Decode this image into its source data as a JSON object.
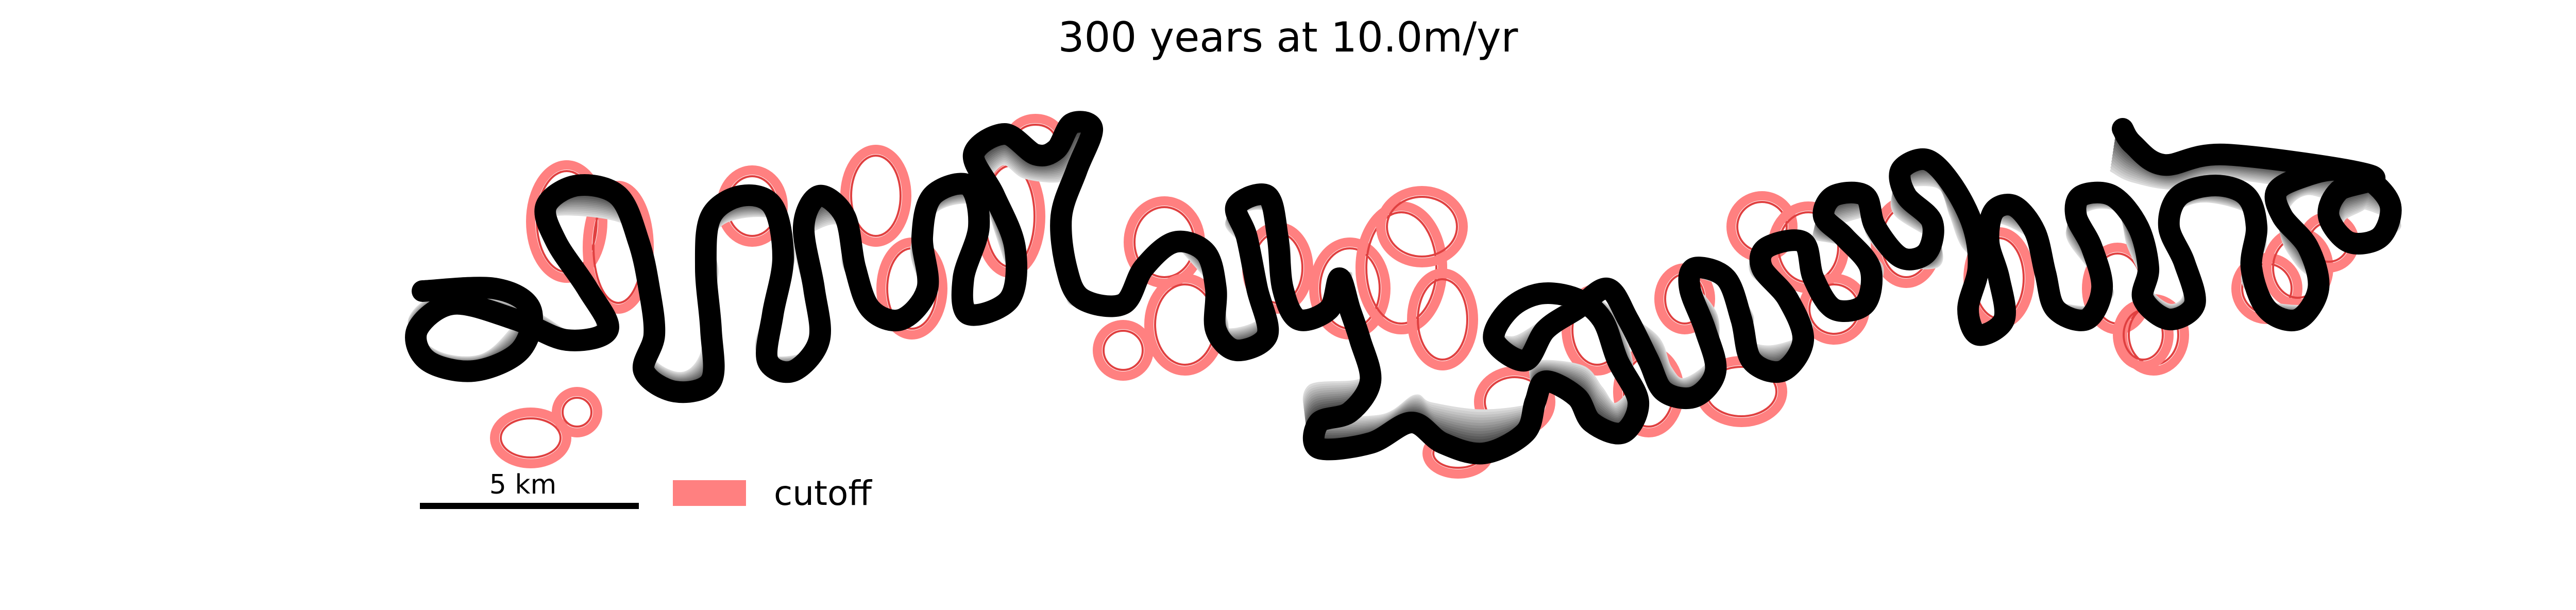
{
  "title": "300 years at 10.0m/yr",
  "scale_bar": {
    "label": "5 km"
  },
  "legend": {
    "label": "cutoff",
    "color": "#ff8080"
  },
  "colors": {
    "channel_current": "#000000",
    "channel_old": "#d8d8d8",
    "cutoff_outline": "#e04040",
    "cutoff_fill": "#ff8080"
  }
}
